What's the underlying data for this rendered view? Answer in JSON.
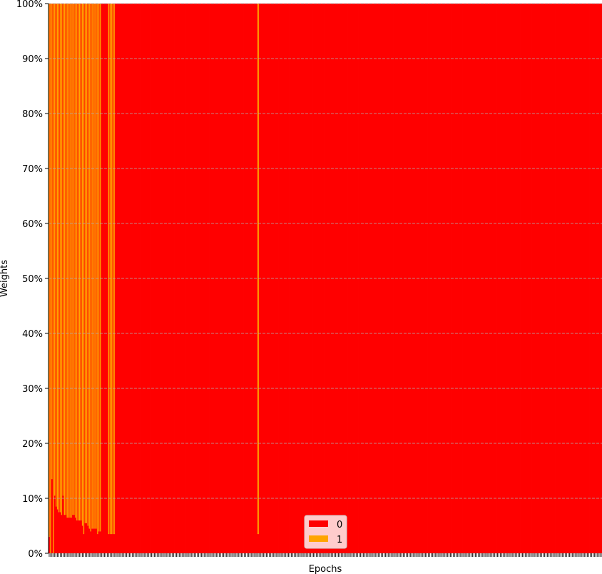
{
  "chart_data": {
    "type": "bar",
    "stacked": true,
    "normalized": true,
    "xlabel": "Epochs",
    "ylabel": "Weights",
    "ylim": [
      0,
      100
    ],
    "yticks": [
      "0%",
      "10%",
      "20%",
      "30%",
      "40%",
      "50%",
      "60%",
      "70%",
      "80%",
      "90%",
      "100%"
    ],
    "grid": "y-dashed",
    "legend_position": "bottom-center",
    "n_epochs": 400,
    "series": [
      {
        "name": "0",
        "color": "#ff0000",
        "values_percent": [
          3.0,
          0.0,
          13.5,
          0.0,
          10.5,
          8.5,
          8.0,
          7.5,
          7.5,
          7.0,
          10.5,
          7.0,
          7.0,
          6.5,
          6.5,
          6.5,
          6.5,
          7.0,
          7.0,
          6.5,
          6.0,
          6.0,
          6.0,
          6.0,
          5.0,
          3.5,
          5.5,
          5.5,
          5.0,
          4.5,
          4.0,
          4.5,
          4.5,
          4.5,
          4.5,
          3.5,
          4.0,
          4.0,
          100,
          100,
          100,
          100,
          100,
          3.5,
          3.5,
          3.5,
          3.5,
          3.5,
          100,
          100
        ],
        "later_epochs": "all 100% except epoch index 151 at 3.5%"
      },
      {
        "name": "1",
        "color": "#ffa500",
        "values_note": "complement of series 0 (100 minus series 0)"
      }
    ],
    "special_epoch_index": 151,
    "special_epoch_value_series0": 3.5
  }
}
